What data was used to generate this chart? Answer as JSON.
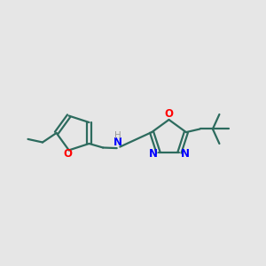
{
  "background_color": "#e6e6e6",
  "bond_color": "#2d6b5e",
  "N_color": "#0000ff",
  "O_color": "#ff0000",
  "H_color": "#999999",
  "linewidth": 1.6,
  "figsize": [
    3.0,
    3.0
  ],
  "dpi": 100,
  "xlim": [
    0,
    10
  ],
  "ylim": [
    2,
    8
  ]
}
